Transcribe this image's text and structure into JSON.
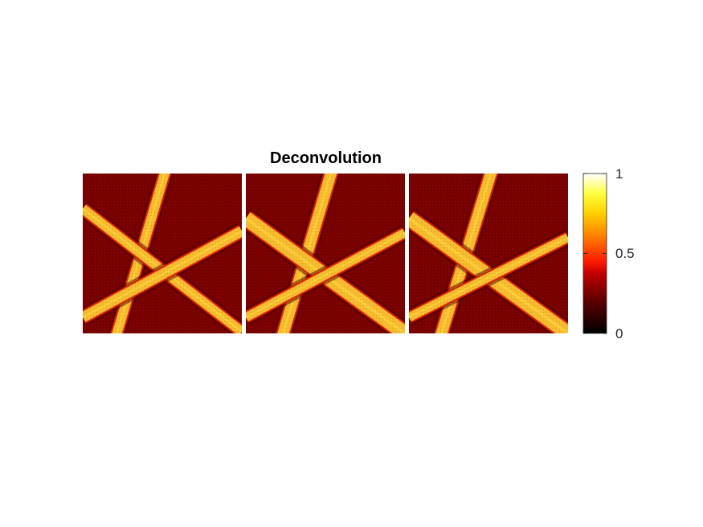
{
  "chart_data": {
    "type": "heatmap",
    "title": "Deconvolution",
    "colormap": "hot",
    "colors": {
      "background": "#7a0000",
      "stripe_core": "#f7bb2f",
      "stripe_edge": "#e02000",
      "stripe_highlight": "#ffe03a",
      "dark_shadow": "#4a0000"
    },
    "colorbar": {
      "range": [
        0,
        1
      ],
      "ticks": [
        0,
        0.5,
        1
      ],
      "tick_labels": [
        "0",
        "0.5",
        "1"
      ]
    },
    "panels": [
      {
        "name": "panel-1",
        "description_of_values": "background ~0.3, stripes ~0.75",
        "background_value": 0.3,
        "stripe_value": 0.75
      },
      {
        "name": "panel-2",
        "background_value": 0.3,
        "stripe_value": 0.75
      },
      {
        "name": "panel-3",
        "background_value": 0.3,
        "stripe_value": 0.75
      }
    ],
    "grid": false,
    "axes_visible": false
  }
}
